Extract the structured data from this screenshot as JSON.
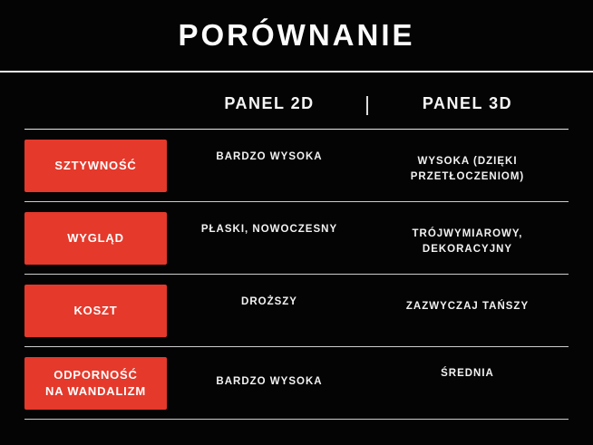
{
  "title": "PORÓWNANIE",
  "header": {
    "panel2d": "PANEL 2D",
    "panel3d": "PANEL 3D"
  },
  "rows": [
    {
      "label": "SZTYWNOŚĆ",
      "panel2d": "BARDZO WYSOKA",
      "panel3d": [
        "WYSOKA (DZIĘKI",
        "PRZETŁOCZENIOM)"
      ]
    },
    {
      "label": "WYGLĄD",
      "panel2d": "PŁASKI, NOWOCZESNY",
      "panel3d": [
        "TRÓJWYMIAROWY,",
        "DEKORACYJNY"
      ]
    },
    {
      "label": "KOSZT",
      "panel2d": "DROŻSZY",
      "panel3d": "ZAZWYCZAJ TAŃSZY"
    },
    {
      "label": [
        "ODPORNOŚĆ",
        "NA WANDALIZM"
      ],
      "panel2d": "BARDZO WYSOKA",
      "panel3d": "ŚREDNIA"
    }
  ],
  "colors": {
    "background": "#040404",
    "accent_red": "#e4392b",
    "divider_line": "#e0e0e0",
    "text": "#f2f2f2"
  },
  "chart_data": {
    "type": "table",
    "title": "PORÓWNANIE",
    "columns": [
      "",
      "PANEL 2D",
      "PANEL 3D"
    ],
    "rows": [
      [
        "SZTYWNOŚĆ",
        "BARDZO WYSOKA",
        "WYSOKA (DZIĘKI PRZETŁOCZENIOM)"
      ],
      [
        "WYGLĄD",
        "PŁASKI, NOWOCZESNY",
        "TRÓJWYMIAROWY, DEKORACYJNY"
      ],
      [
        "KOSZT",
        "DROŻSZY",
        "ZAZWYCZAJ TAŃSZY"
      ],
      [
        "ODPORNOŚĆ NA WANDALIZM",
        "BARDZO WYSOKA",
        "ŚREDNIA"
      ]
    ]
  }
}
